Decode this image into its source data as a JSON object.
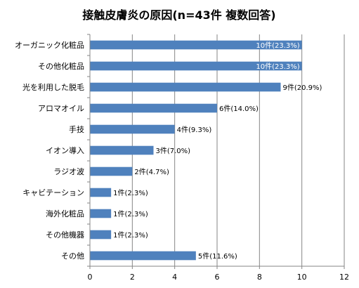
{
  "chart_data": {
    "type": "bar",
    "orientation": "horizontal",
    "title": "接触皮膚炎の原因(n=43件  複数回答)",
    "categories": [
      "オーガニック化粧品",
      "その他化粧品",
      "光を利用した脱毛",
      "アロマオイル",
      "手技",
      "イオン導入",
      "ラジオ波",
      "キャビテーション",
      "海外化粧品",
      "その他機器",
      "その他"
    ],
    "values": [
      10,
      10,
      9,
      6,
      4,
      3,
      2,
      1,
      1,
      1,
      5
    ],
    "data_labels": [
      "10件(23.3%)",
      "10件(23.3%)",
      "9件(20.9%)",
      "6件(14.0%)",
      "4件(9.3%)",
      "3件(7.0%)",
      "2件(4.7%)",
      "1件(2.3%)",
      "1件(2.3%)",
      "1件(2.3%)",
      "5件(11.6%)"
    ],
    "xlim": [
      0,
      12
    ],
    "xticks": [
      "0",
      "2",
      "4",
      "6",
      "8",
      "10",
      "12"
    ],
    "grid": "vertical",
    "legend": "none",
    "bar_color": "#4f81bd"
  }
}
